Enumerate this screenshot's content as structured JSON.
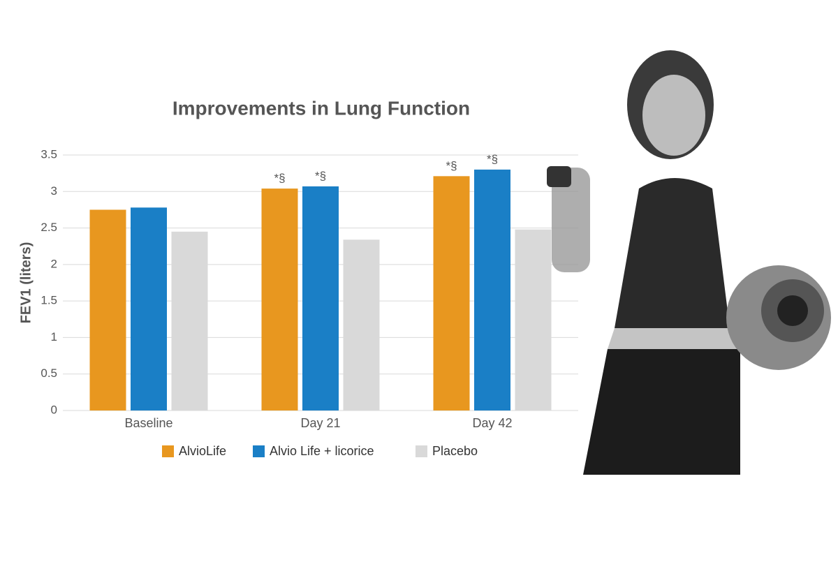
{
  "chart_data": {
    "type": "bar",
    "title": "Improvements in Lung Function",
    "y_label": "FEV1 (liters)",
    "categories": [
      "Baseline",
      "Day 21",
      "Day 42"
    ],
    "series": [
      {
        "name": "AlvioLife",
        "color": "#e8971f",
        "values": [
          2.75,
          3.04,
          3.21
        ],
        "annotations": [
          null,
          "*§",
          "*§"
        ]
      },
      {
        "name": "Alvio Life + licorice",
        "color": "#1a7fc6",
        "values": [
          2.78,
          3.07,
          3.3
        ],
        "annotations": [
          null,
          "*§",
          "*§"
        ]
      },
      {
        "name": "Placebo",
        "color": "#d9d9d9",
        "values": [
          2.45,
          2.34,
          2.48
        ]
      }
    ],
    "ylim": [
      0,
      3.5
    ],
    "yticks": [
      0,
      0.5,
      1,
      1.5,
      2,
      2.5,
      3,
      3.5
    ],
    "grid": true,
    "legend": "bottom"
  }
}
